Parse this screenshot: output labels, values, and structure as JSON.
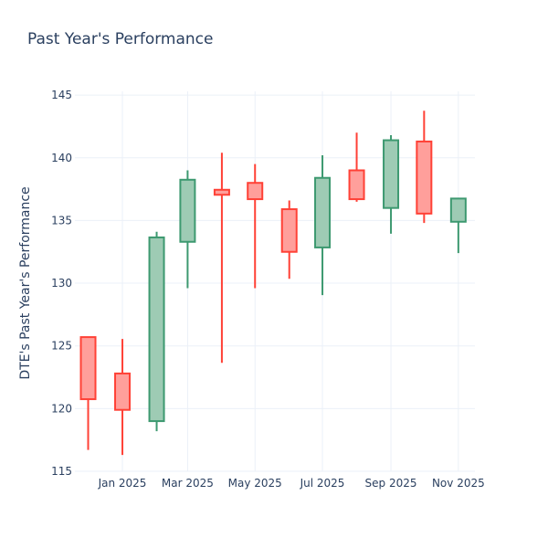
{
  "chart_data": {
    "type": "candlestick",
    "title": "Past Year's Performance",
    "xlabel": "",
    "ylabel": "DTE's Past Year's Performance",
    "ylim": [
      115,
      145.3
    ],
    "xlim": [
      "2024-11-19",
      "2025-11-16"
    ],
    "grid": true,
    "y_ticks": [
      115,
      120,
      125,
      130,
      135,
      140,
      145
    ],
    "x_ticks": [
      {
        "date": "2025-01-01",
        "label": "Jan 2025"
      },
      {
        "date": "2025-03-01",
        "label": "Mar 2025"
      },
      {
        "date": "2025-05-01",
        "label": "May 2025"
      },
      {
        "date": "2025-07-01",
        "label": "Jul 2025"
      },
      {
        "date": "2025-09-01",
        "label": "Sep 2025"
      },
      {
        "date": "2025-11-01",
        "label": "Nov 2025"
      }
    ],
    "colors": {
      "increasing": "#3d9970",
      "increasing_fill": "#9ecbb4",
      "decreasing": "#ff4136",
      "decreasing_fill": "#ff9f9b",
      "text": "#2a3f5f",
      "grid": "#ebf0f8"
    },
    "candles": [
      {
        "date": "2024-12-01",
        "open": 125.7,
        "high": 125.7,
        "low": 116.7,
        "close": 120.75
      },
      {
        "date": "2025-01-01",
        "open": 122.8,
        "high": 125.55,
        "low": 116.3,
        "close": 119.9
      },
      {
        "date": "2025-02-01",
        "open": 119.0,
        "high": 134.1,
        "low": 118.2,
        "close": 133.65
      },
      {
        "date": "2025-03-01",
        "open": 133.3,
        "high": 139.0,
        "low": 129.6,
        "close": 138.25
      },
      {
        "date": "2025-04-01",
        "open": 137.45,
        "high": 140.4,
        "low": 123.65,
        "close": 137.05
      },
      {
        "date": "2025-05-01",
        "open": 138.0,
        "high": 139.5,
        "low": 129.6,
        "close": 136.7
      },
      {
        "date": "2025-06-01",
        "open": 135.9,
        "high": 136.6,
        "low": 130.35,
        "close": 132.5
      },
      {
        "date": "2025-07-01",
        "open": 132.85,
        "high": 140.2,
        "low": 129.05,
        "close": 138.4
      },
      {
        "date": "2025-08-01",
        "open": 139.0,
        "high": 142.0,
        "low": 136.5,
        "close": 136.7
      },
      {
        "date": "2025-09-01",
        "open": 136.0,
        "high": 141.8,
        "low": 133.95,
        "close": 141.4
      },
      {
        "date": "2025-10-01",
        "open": 141.3,
        "high": 143.75,
        "low": 134.8,
        "close": 135.55
      },
      {
        "date": "2025-11-01",
        "open": 134.9,
        "high": 136.75,
        "low": 132.4,
        "close": 136.75
      }
    ]
  }
}
